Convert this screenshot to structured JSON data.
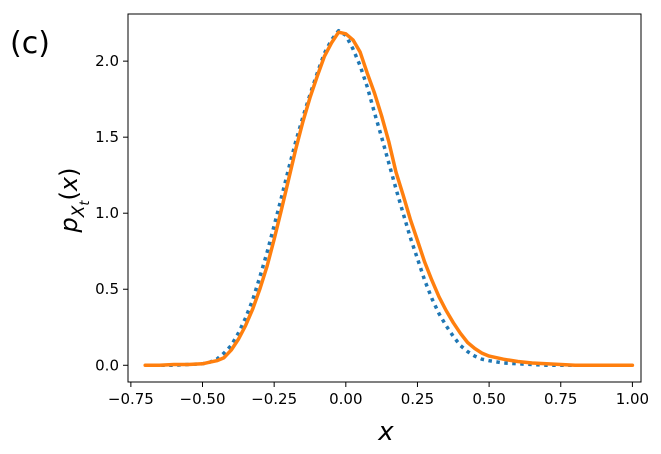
{
  "panel_label": "(c)",
  "chart_data": {
    "type": "line",
    "xlabel": "x",
    "ylabel": {
      "base": "p",
      "sub": "X",
      "subsub": "t",
      "arg": "(x)"
    },
    "xlim": [
      -0.76,
      1.03
    ],
    "ylim": [
      -0.11,
      2.31
    ],
    "x_ticks": [
      -0.75,
      -0.5,
      -0.25,
      0.0,
      0.25,
      0.5,
      0.75,
      1.0
    ],
    "x_tick_labels": [
      "−0.75",
      "−0.50",
      "−0.25",
      "0.00",
      "0.25",
      "0.50",
      "0.75",
      "1.00"
    ],
    "y_ticks": [
      0.0,
      0.5,
      1.0,
      1.5,
      2.0
    ],
    "y_tick_labels": [
      "0.0",
      "0.5",
      "1.0",
      "1.5",
      "2.0"
    ],
    "grid": false,
    "legend": "none",
    "series": [
      {
        "color": "#1f77b4",
        "style": "dotted",
        "x": [
          -0.7,
          -0.65,
          -0.6,
          -0.55,
          -0.5,
          -0.475,
          -0.45,
          -0.425,
          -0.4,
          -0.375,
          -0.35,
          -0.325,
          -0.3,
          -0.275,
          -0.25,
          -0.225,
          -0.2,
          -0.175,
          -0.15,
          -0.125,
          -0.1,
          -0.075,
          -0.05,
          -0.025,
          0.0,
          0.025,
          0.05,
          0.075,
          0.1,
          0.125,
          0.15,
          0.175,
          0.2,
          0.225,
          0.25,
          0.275,
          0.3,
          0.325,
          0.35,
          0.375,
          0.4,
          0.425,
          0.45,
          0.475,
          0.5,
          0.55,
          0.6,
          0.65,
          0.7,
          0.75,
          0.8,
          0.85,
          0.9,
          0.95,
          1.0
        ],
        "y": [
          0.0,
          0.0,
          0.0,
          0.005,
          0.01,
          0.02,
          0.04,
          0.08,
          0.13,
          0.21,
          0.31,
          0.43,
          0.58,
          0.74,
          0.92,
          1.1,
          1.29,
          1.47,
          1.63,
          1.78,
          1.92,
          2.05,
          2.14,
          2.2,
          2.17,
          2.08,
          1.97,
          1.83,
          1.66,
          1.5,
          1.33,
          1.16,
          1.0,
          0.84,
          0.7,
          0.56,
          0.44,
          0.34,
          0.26,
          0.19,
          0.13,
          0.09,
          0.06,
          0.04,
          0.03,
          0.015,
          0.01,
          0.005,
          0.0,
          0.0,
          0.0,
          0.0,
          0.0,
          0.0,
          0.0
        ]
      },
      {
        "color": "#ff7f0e",
        "style": "solid",
        "x": [
          -0.7,
          -0.65,
          -0.6,
          -0.55,
          -0.5,
          -0.475,
          -0.45,
          -0.425,
          -0.4,
          -0.375,
          -0.35,
          -0.325,
          -0.3,
          -0.275,
          -0.25,
          -0.225,
          -0.2,
          -0.175,
          -0.15,
          -0.125,
          -0.1,
          -0.075,
          -0.05,
          -0.025,
          0.0,
          0.025,
          0.05,
          0.075,
          0.1,
          0.125,
          0.15,
          0.175,
          0.2,
          0.225,
          0.25,
          0.275,
          0.3,
          0.325,
          0.35,
          0.375,
          0.4,
          0.425,
          0.45,
          0.475,
          0.5,
          0.55,
          0.6,
          0.65,
          0.7,
          0.75,
          0.8,
          0.85,
          0.9,
          0.95,
          1.0
        ],
        "y": [
          0.0,
          0.0,
          0.005,
          0.005,
          0.01,
          0.02,
          0.03,
          0.05,
          0.1,
          0.17,
          0.26,
          0.37,
          0.5,
          0.65,
          0.83,
          1.02,
          1.22,
          1.42,
          1.6,
          1.76,
          1.9,
          2.03,
          2.12,
          2.19,
          2.18,
          2.14,
          2.06,
          1.92,
          1.79,
          1.64,
          1.47,
          1.27,
          1.12,
          0.96,
          0.82,
          0.68,
          0.56,
          0.45,
          0.36,
          0.28,
          0.21,
          0.15,
          0.11,
          0.08,
          0.06,
          0.04,
          0.025,
          0.015,
          0.01,
          0.005,
          0.0,
          0.0,
          0.0,
          0.0,
          0.0
        ]
      }
    ]
  }
}
